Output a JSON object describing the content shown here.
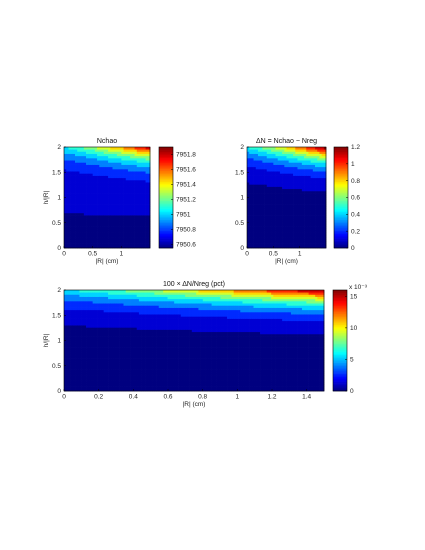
{
  "chart_data": [
    {
      "type": "heatmap",
      "title": "Nchao",
      "xlabel": "|R| (cm)",
      "ylabel": "h/|R|",
      "xlim": [
        0,
        1.5
      ],
      "ylim": [
        0,
        2
      ],
      "x_ticks": [
        "0",
        "0.5",
        "1"
      ],
      "y_ticks": [
        "0",
        "0.5",
        "1",
        "1.5",
        "2"
      ],
      "colorbar_ticks": [
        "7950.6",
        "7950.8",
        "7951",
        "7951.2",
        "7951.4",
        "7951.6",
        "7951.8"
      ],
      "colorbar_exponent": "",
      "clim": [
        7950.55,
        7951.9
      ],
      "value_model": {
        "base": 7950.6,
        "peak_delta": 1.2
      }
    },
    {
      "type": "heatmap",
      "title": "ΔN = Nchao − Nreg",
      "xlabel": "|R| (cm)",
      "ylabel": "",
      "xlim": [
        0,
        1.5
      ],
      "ylim": [
        0,
        2
      ],
      "x_ticks": [
        "0",
        "0.5",
        "1"
      ],
      "y_ticks": [
        "0",
        "0.5",
        "1",
        "1.5",
        "2"
      ],
      "colorbar_ticks": [
        "0",
        "0.2",
        "0.4",
        "0.6",
        "0.8",
        "1",
        "1.2"
      ],
      "colorbar_exponent": "",
      "clim": [
        0,
        1.2
      ],
      "value_model": {
        "base": 0,
        "peak_delta": 1.2
      }
    },
    {
      "type": "heatmap",
      "title": "100 × ΔN/Nreg (pct)",
      "xlabel": "|R| (cm)",
      "ylabel": "h/|R|",
      "xlim": [
        0,
        1.5
      ],
      "ylim": [
        0,
        2
      ],
      "x_ticks": [
        "0",
        "0.2",
        "0.4",
        "0.6",
        "0.8",
        "1",
        "1.2",
        "1.4"
      ],
      "y_ticks": [
        "0",
        "0.5",
        "1",
        "1.5",
        "2"
      ],
      "colorbar_ticks": [
        "0",
        "5",
        "10",
        "15"
      ],
      "colorbar_exponent": "x 10⁻³",
      "clim": [
        0,
        16
      ],
      "value_model": {
        "base": 0,
        "peak_delta": 15.5
      }
    }
  ]
}
